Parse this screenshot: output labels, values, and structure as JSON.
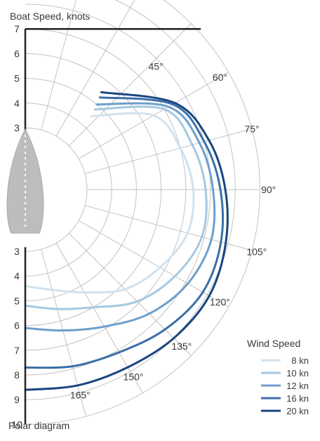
{
  "chart_data": {
    "type": "polar",
    "title": "Boat Speed, knots",
    "caption": "Polar diagram",
    "angle_unit": "°",
    "angles": [
      45,
      60,
      75,
      90,
      105,
      120,
      135,
      150,
      165
    ],
    "speed_range": [
      0,
      10
    ],
    "upper_speed_labels": [
      3,
      4,
      5,
      6,
      7
    ],
    "lower_speed_labels": [
      3,
      4,
      5,
      6,
      7,
      8,
      9,
      10
    ],
    "legend_title": "Wind Speed",
    "legend_position": "bottom-right",
    "series": [
      {
        "name": "8 kn",
        "color": "#cfe2f0",
        "points": [
          [
            42,
            4.5
          ],
          [
            60,
            6.5
          ],
          [
            75,
            7.0
          ],
          [
            90,
            7.3
          ],
          [
            105,
            7.3
          ],
          [
            120,
            6.8
          ],
          [
            135,
            6.2
          ],
          [
            150,
            5.3
          ],
          [
            165,
            4.7
          ],
          [
            180,
            4.4
          ]
        ]
      },
      {
        "name": "10 kn",
        "color": "#a5c8e2",
        "points": [
          [
            41,
            4.8
          ],
          [
            60,
            7.0
          ],
          [
            75,
            7.5
          ],
          [
            90,
            7.8
          ],
          [
            105,
            7.9
          ],
          [
            120,
            7.5
          ],
          [
            135,
            6.9
          ],
          [
            150,
            6.0
          ],
          [
            165,
            5.5
          ],
          [
            180,
            5.2
          ]
        ]
      },
      {
        "name": "12 kn",
        "color": "#6e9fcc",
        "points": [
          [
            40,
            5.0
          ],
          [
            60,
            7.2
          ],
          [
            75,
            7.8
          ],
          [
            90,
            8.1
          ],
          [
            105,
            8.3
          ],
          [
            120,
            8.1
          ],
          [
            135,
            7.6
          ],
          [
            150,
            6.9
          ],
          [
            165,
            6.4
          ],
          [
            180,
            6.1
          ]
        ]
      },
      {
        "name": "16 kn",
        "color": "#3b6fa8",
        "points": [
          [
            39,
            5.3
          ],
          [
            60,
            7.4
          ],
          [
            75,
            8.0
          ],
          [
            90,
            8.4
          ],
          [
            105,
            8.7
          ],
          [
            120,
            8.8
          ],
          [
            135,
            8.5
          ],
          [
            150,
            8.1
          ],
          [
            165,
            7.9
          ],
          [
            180,
            7.7
          ]
        ]
      },
      {
        "name": "20 kn",
        "color": "#18457f",
        "points": [
          [
            38,
            5.5
          ],
          [
            60,
            7.5
          ],
          [
            75,
            8.2
          ],
          [
            90,
            8.6
          ],
          [
            105,
            8.9
          ],
          [
            120,
            9.1
          ],
          [
            135,
            9.0
          ],
          [
            150,
            8.8
          ],
          [
            165,
            8.7
          ],
          [
            180,
            8.6
          ]
        ]
      }
    ]
  }
}
